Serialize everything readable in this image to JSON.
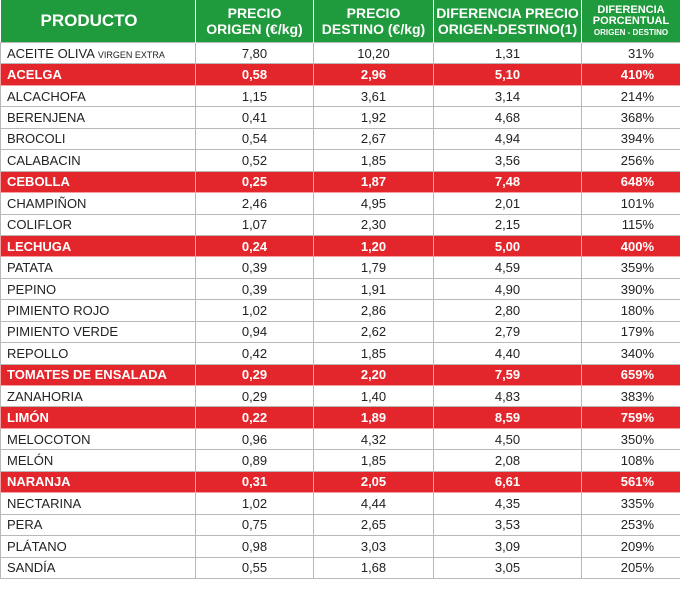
{
  "table": {
    "header": [
      [
        "PRODUCTO"
      ],
      [
        "PRECIO",
        "ORIGEN (€/kg)"
      ],
      [
        "PRECIO",
        "DESTINO (€/kg)"
      ],
      [
        "DIFERENCIA PRECIO",
        "ORIGEN-DESTINO(1)"
      ],
      [
        "DIFERENCIA",
        "PORCENTUAL",
        "ORIGEN - DESTINO"
      ]
    ],
    "header_color": "#1f9a3c",
    "highlight_color": "#e3262b",
    "rows": [
      {
        "product": "ACEITE OLIVA",
        "product_note": "VIRGEN EXTRA",
        "values": [
          "7,80",
          "10,20",
          "1,31",
          "31%"
        ],
        "highlight": false
      },
      {
        "product": "ACELGA",
        "values": [
          "0,58",
          "2,96",
          "5,10",
          "410%"
        ],
        "highlight": true
      },
      {
        "product": "ALCACHOFA",
        "values": [
          "1,15",
          "3,61",
          "3,14",
          "214%"
        ],
        "highlight": false
      },
      {
        "product": "BERENJENA",
        "values": [
          "0,41",
          "1,92",
          "4,68",
          "368%"
        ],
        "highlight": false
      },
      {
        "product": "BROCOLI",
        "values": [
          "0,54",
          "2,67",
          "4,94",
          "394%"
        ],
        "highlight": false
      },
      {
        "product": "CALABACIN",
        "values": [
          "0,52",
          "1,85",
          "3,56",
          "256%"
        ],
        "highlight": false
      },
      {
        "product": "CEBOLLA",
        "values": [
          "0,25",
          "1,87",
          "7,48",
          "648%"
        ],
        "highlight": true
      },
      {
        "product": "CHAMPIÑON",
        "values": [
          "2,46",
          "4,95",
          "2,01",
          "101%"
        ],
        "highlight": false
      },
      {
        "product": "COLIFLOR",
        "values": [
          "1,07",
          "2,30",
          "2,15",
          "115%"
        ],
        "highlight": false
      },
      {
        "product": "LECHUGA",
        "values": [
          "0,24",
          "1,20",
          "5,00",
          "400%"
        ],
        "highlight": true
      },
      {
        "product": "PATATA",
        "values": [
          "0,39",
          "1,79",
          "4,59",
          "359%"
        ],
        "highlight": false
      },
      {
        "product": "PEPINO",
        "values": [
          "0,39",
          "1,91",
          "4,90",
          "390%"
        ],
        "highlight": false
      },
      {
        "product": "PIMIENTO ROJO",
        "values": [
          "1,02",
          "2,86",
          "2,80",
          "180%"
        ],
        "highlight": false
      },
      {
        "product": "PIMIENTO VERDE",
        "values": [
          "0,94",
          "2,62",
          "2,79",
          "179%"
        ],
        "highlight": false
      },
      {
        "product": "REPOLLO",
        "values": [
          "0,42",
          "1,85",
          "4,40",
          "340%"
        ],
        "highlight": false
      },
      {
        "product": "TOMATES DE ENSALADA",
        "values": [
          "0,29",
          "2,20",
          "7,59",
          "659%"
        ],
        "highlight": true
      },
      {
        "product": "ZANAHORIA",
        "values": [
          "0,29",
          "1,40",
          "4,83",
          "383%"
        ],
        "highlight": false
      },
      {
        "product": "LIMÓN",
        "values": [
          "0,22",
          "1,89",
          "8,59",
          "759%"
        ],
        "highlight": true
      },
      {
        "product": "MELOCOTON",
        "values": [
          "0,96",
          "4,32",
          "4,50",
          "350%"
        ],
        "highlight": false
      },
      {
        "product": "MELÓN",
        "values": [
          "0,89",
          "1,85",
          "2,08",
          "108%"
        ],
        "highlight": false
      },
      {
        "product": "NARANJA",
        "values": [
          "0,31",
          "2,05",
          "6,61",
          "561%"
        ],
        "highlight": true
      },
      {
        "product": "NECTARINA",
        "values": [
          "1,02",
          "4,44",
          "4,35",
          "335%"
        ],
        "highlight": false
      },
      {
        "product": "PERA",
        "values": [
          "0,75",
          "2,65",
          "3,53",
          "253%"
        ],
        "highlight": false
      },
      {
        "product": "PLÁTANO",
        "values": [
          "0,98",
          "3,03",
          "3,09",
          "209%"
        ],
        "highlight": false
      },
      {
        "product": "SANDÍA",
        "values": [
          "0,55",
          "1,68",
          "3,05",
          "205%"
        ],
        "highlight": false
      }
    ]
  }
}
